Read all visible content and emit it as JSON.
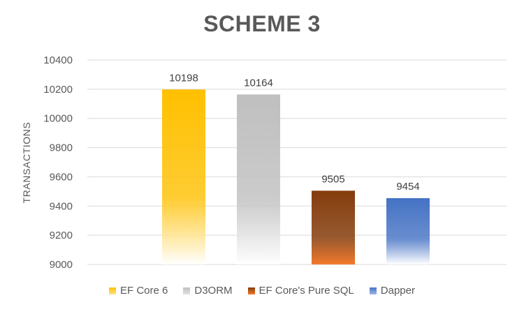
{
  "chart_data": {
    "type": "bar",
    "title": "SCHEME 3",
    "xlabel": "",
    "ylabel": "TRANSACTIONS",
    "ylim": [
      9000,
      10400
    ],
    "yticks": [
      9000,
      9200,
      9400,
      9600,
      9800,
      10000,
      10200,
      10400
    ],
    "grid": true,
    "legend_position": "bottom",
    "categories": [
      "EF Core 6",
      "D3ORM",
      "EF Core's Pure SQL",
      "Dapper"
    ],
    "values": [
      10198,
      10164,
      9505,
      9454
    ],
    "colors": [
      "#ffc000",
      "#bfbfbf",
      "#843c0c",
      "#4472c4"
    ]
  }
}
